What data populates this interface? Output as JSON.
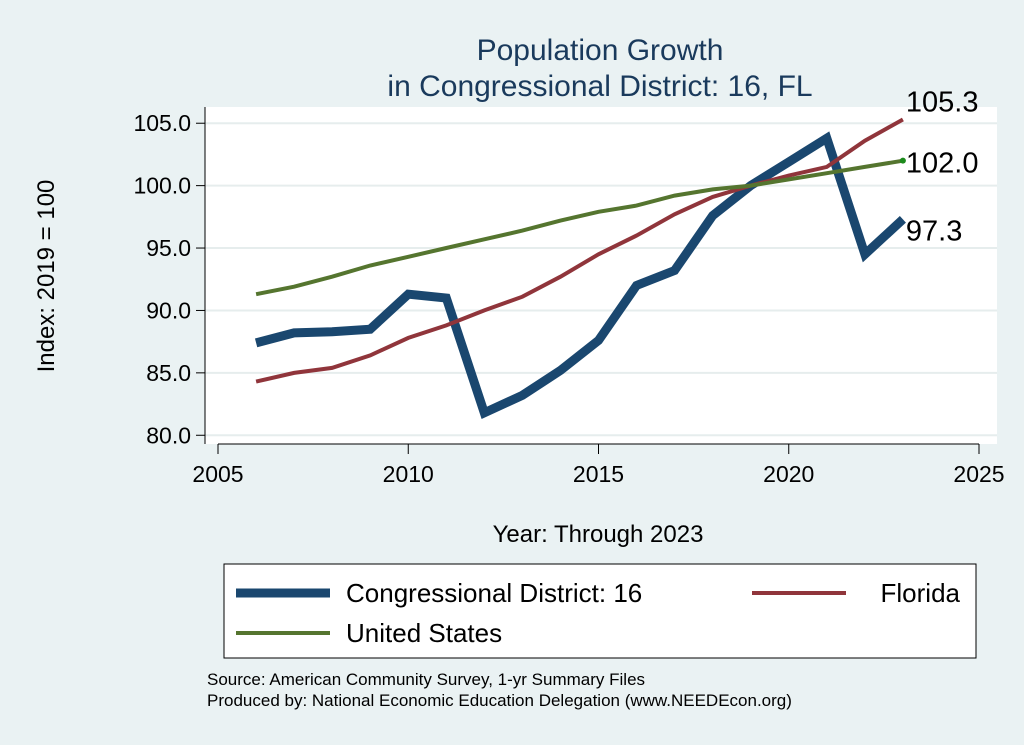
{
  "chart_data": {
    "type": "line",
    "title": [
      "Population Growth",
      "in Congressional District: 16, FL"
    ],
    "xlabel": "Year: Through 2023",
    "ylabel": "Index: 2019 = 100",
    "xlim": [
      2005,
      2025
    ],
    "ylim": [
      79.3,
      106.3
    ],
    "xticks": [
      {
        "value": 2005,
        "label": "2005"
      },
      {
        "value": 2010,
        "label": "2010"
      },
      {
        "value": 2015,
        "label": "2015"
      },
      {
        "value": 2020,
        "label": "2020"
      },
      {
        "value": 2025,
        "label": "2025"
      }
    ],
    "yticks": [
      {
        "value": 80,
        "label": "80.0"
      },
      {
        "value": 85,
        "label": "85.0"
      },
      {
        "value": 90,
        "label": "90.0"
      },
      {
        "value": 95,
        "label": "95.0"
      },
      {
        "value": 100,
        "label": "100.0"
      },
      {
        "value": 105,
        "label": "105.0"
      }
    ],
    "grid": true,
    "x": [
      2006,
      2007,
      2008,
      2009,
      2010,
      2011,
      2012,
      2013,
      2014,
      2015,
      2016,
      2017,
      2018,
      2019,
      2020,
      2021,
      2022,
      2023
    ],
    "series": [
      {
        "name": "Congressional District: 16",
        "color": "#1a476f",
        "width": 9,
        "values": [
          87.4,
          88.2,
          88.3,
          88.5,
          91.3,
          91.0,
          81.8,
          83.2,
          85.2,
          87.6,
          92.0,
          93.2,
          97.6,
          100.0,
          101.9,
          103.8,
          94.5,
          97.3
        ],
        "end_label": "97.3"
      },
      {
        "name": "Florida",
        "color": "#90353b",
        "width": 4,
        "values": [
          84.3,
          85.0,
          85.4,
          86.4,
          87.8,
          88.8,
          90.0,
          91.1,
          92.7,
          94.5,
          96.0,
          97.7,
          99.1,
          100.0,
          100.8,
          101.5,
          103.6,
          105.3
        ],
        "end_label": "105.3"
      },
      {
        "name": "United States",
        "color": "#55752f",
        "width": 4,
        "values": [
          91.3,
          91.9,
          92.7,
          93.6,
          94.3,
          95.0,
          95.7,
          96.4,
          97.2,
          97.9,
          98.4,
          99.2,
          99.7,
          100.0,
          100.5,
          101.0,
          101.5,
          102.0
        ],
        "end_label": "102.0"
      }
    ],
    "legend": {
      "placement": "bottom",
      "items": [
        {
          "label": "Congressional District: 16",
          "color": "#1a476f"
        },
        {
          "label": "Florida",
          "color": "#90353b"
        },
        {
          "label": "United States",
          "color": "#55752f"
        }
      ]
    },
    "source": [
      "Source: American Community Survey, 1-yr Summary Files",
      "Produced by: National Economic Education Delegation (www.NEEDEcon.org)"
    ]
  }
}
